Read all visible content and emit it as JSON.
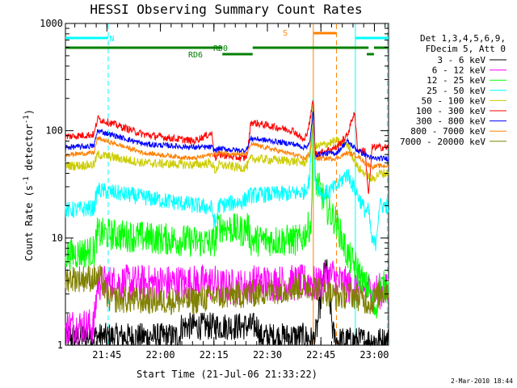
{
  "chart_data": {
    "type": "line",
    "title": "HESSI Observing Summary Count Rates",
    "xlabel": "Start Time (21-Jul-06 21:33:22)",
    "ylabel": "Count Rate (s⁻¹ detector⁻¹)",
    "ylabel_parts": {
      "main": "Count Rate (s",
      "sup1": "-1",
      "mid": " detector",
      "sup2": "-1",
      "end": ")"
    },
    "y_scale": "log",
    "ylim": [
      1,
      1000
    ],
    "xlim_minutes": [
      0,
      90.6
    ],
    "x_tick_labels": [
      "21:45",
      "22:00",
      "22:15",
      "22:30",
      "22:45",
      "23:00"
    ],
    "x_tick_minutes": [
      11.63,
      26.63,
      41.63,
      56.63,
      71.63,
      86.63
    ],
    "y_tick_labels": [
      "1",
      "10",
      "100",
      "1000"
    ],
    "y_tick_values": [
      1,
      10,
      100,
      1000
    ],
    "grid": false,
    "legend_placement": "right",
    "legend_header": [
      "Det 1,3,4,5,6,9,",
      "FDecim 5, Att 0"
    ],
    "date_stamp": "2-Mar-2010 18:44",
    "flags": [
      {
        "label": "N",
        "color": "#00ffff",
        "segments": [
          [
            0,
            12.0
          ],
          [
            81.3,
            90.6
          ]
        ]
      },
      {
        "label": "S",
        "color": "#ff8000",
        "segments": [
          [
            69.5,
            76.0
          ]
        ]
      },
      {
        "label": "RD0",
        "color": "#008000",
        "segments": [
          [
            0,
            44.0
          ],
          [
            52.5,
            85.0
          ],
          [
            86.5,
            90.6
          ]
        ]
      },
      {
        "label": "RD6",
        "color": "#008000",
        "segments": [
          [
            44.0,
            52.5
          ],
          [
            84.5,
            86.5
          ]
        ]
      }
    ],
    "vlines": [
      {
        "minute": 12.0,
        "color": "#00ffff",
        "style": "dashed"
      },
      {
        "minute": 81.3,
        "color": "#00ffff",
        "style": "solid"
      },
      {
        "minute": 90.3,
        "color": "#00ffff",
        "style": "dashed"
      },
      {
        "minute": 69.5,
        "color": "#ff8000",
        "style": "solid"
      },
      {
        "minute": 76.0,
        "color": "#ff8000",
        "style": "dashed"
      }
    ],
    "series": [
      {
        "name": "3 - 6 keV",
        "color": "#000000",
        "noise": 0.3,
        "x": [
          0,
          8,
          8.2,
          32,
          32.5,
          54,
          54.5,
          65,
          67,
          69.5,
          70.5,
          73,
          74,
          75,
          76,
          90.6
        ],
        "y": [
          1.2,
          1.2,
          1.2,
          1.2,
          1.5,
          1.5,
          1.2,
          1.2,
          1.2,
          1.1,
          1.4,
          6,
          3,
          1.3,
          1.1,
          1.1
        ]
      },
      {
        "name": "6 - 12 keV",
        "color": "#ff00ff",
        "noise": 0.4,
        "x": [
          0,
          8,
          9,
          42,
          42.5,
          52,
          52.5,
          66,
          69.5,
          70,
          75,
          76,
          80,
          82,
          86,
          88,
          90.6
        ],
        "y": [
          1.5,
          1.5,
          3.8,
          3.8,
          3.5,
          3.5,
          3.8,
          3.8,
          4,
          3.5,
          4.5,
          4,
          3.5,
          3.5,
          3.2,
          3.2,
          3.2
        ]
      },
      {
        "name": "12 - 25 keV",
        "color": "#00ff00",
        "noise": 0.35,
        "x": [
          0,
          8,
          9,
          41,
          42,
          43,
          50,
          51,
          52,
          66,
          69,
          69.5,
          70,
          72,
          73,
          76,
          79,
          82,
          84,
          85,
          86,
          87,
          88,
          90.6
        ],
        "y": [
          7,
          7.5,
          11,
          9,
          9.5,
          13,
          11.5,
          13,
          9.5,
          9.5,
          14,
          200,
          35,
          25,
          20,
          14,
          7,
          5,
          3.5,
          3.5,
          2.5,
          2.2,
          3.5,
          3.5
        ]
      },
      {
        "name": "25 - 50 keV",
        "color": "#00ffff",
        "noise": 0.18,
        "x": [
          0,
          8,
          9,
          41,
          42,
          43,
          50,
          51,
          52,
          64,
          67,
          68.5,
          69.5,
          70,
          72,
          76,
          79,
          82,
          84,
          85,
          86,
          87,
          88,
          90.6
        ],
        "y": [
          18,
          19,
          28,
          19,
          13,
          20,
          22,
          24,
          25,
          26,
          27,
          35,
          200,
          35,
          25,
          30,
          40,
          25,
          18,
          18,
          9,
          9,
          20,
          20
        ]
      },
      {
        "name": "50 - 100 keV",
        "color": "#cccc00",
        "noise": 0.1,
        "x": [
          0,
          8,
          9,
          22,
          36,
          41,
          42,
          43,
          50,
          51,
          52,
          64,
          67,
          68.5,
          69.5,
          70,
          76,
          79,
          82,
          84,
          86,
          88,
          90.6
        ],
        "y": [
          47,
          48,
          60,
          50,
          48,
          50,
          42,
          48,
          45,
          47,
          55,
          52,
          50,
          60,
          200,
          70,
          80,
          75,
          45,
          40,
          35,
          40,
          40
        ]
      },
      {
        "name": "100 - 300 keV",
        "color": "#ff0000",
        "noise": 0.08,
        "x": [
          0,
          8,
          9,
          22,
          36,
          41,
          42,
          43,
          50,
          51,
          52,
          64,
          67,
          68.5,
          69.5,
          70,
          76,
          79,
          81,
          82,
          84,
          85,
          86,
          87,
          88,
          90.6
        ],
        "y": [
          88,
          92,
          130,
          92,
          80,
          95,
          55,
          60,
          55,
          60,
          120,
          100,
          80,
          120,
          200,
          60,
          70,
          90,
          150,
          65,
          65,
          25,
          70,
          70,
          70,
          70
        ]
      },
      {
        "name": "300 - 800 keV",
        "color": "#0000ff",
        "noise": 0.06,
        "x": [
          0,
          8,
          9,
          22,
          36,
          41,
          42,
          43,
          50,
          51,
          52,
          64,
          67,
          68.5,
          69.5,
          70,
          76,
          79,
          82,
          84,
          86,
          88,
          90.6
        ],
        "y": [
          70,
          72,
          100,
          75,
          70,
          70,
          65,
          68,
          65,
          68,
          85,
          75,
          70,
          75,
          160,
          60,
          62,
          80,
          65,
          60,
          55,
          55,
          55
        ]
      },
      {
        "name": "800 - 7000 keV",
        "color": "#ff8000",
        "noise": 0.05,
        "x": [
          0,
          8,
          9,
          22,
          36,
          41,
          42,
          43,
          50,
          51,
          52,
          64,
          67,
          68.5,
          69.5,
          70,
          76,
          79,
          82,
          84,
          86,
          88,
          90.6
        ],
        "y": [
          60,
          62,
          85,
          62,
          55,
          60,
          60,
          62,
          60,
          62,
          75,
          60,
          55,
          60,
          120,
          55,
          55,
          62,
          58,
          50,
          46,
          47,
          47
        ]
      },
      {
        "name": "7000 - 20000 keV",
        "color": "#808000",
        "noise": 0.3,
        "x": [
          0,
          10,
          12,
          22,
          36,
          41,
          52,
          66,
          70,
          76,
          80,
          82,
          84,
          86,
          88,
          90.6
        ],
        "y": [
          4.2,
          4.2,
          2.7,
          2.6,
          2.6,
          2.8,
          3.0,
          3.5,
          3.5,
          2.8,
          3.0,
          2.8,
          2.6,
          2.5,
          3.0,
          3.3
        ]
      }
    ]
  }
}
